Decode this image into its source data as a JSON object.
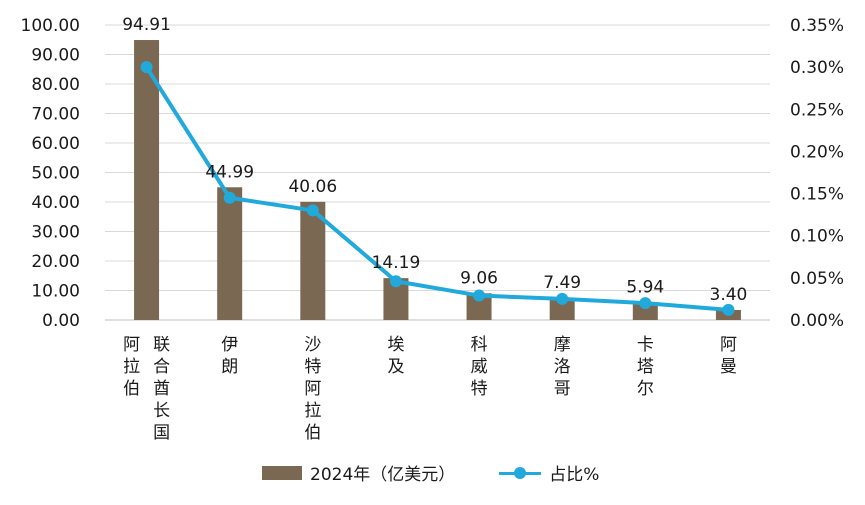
{
  "chart_data": {
    "type": "bar",
    "categories": [
      "阿拉伯联合酋长国",
      "伊朗",
      "沙特阿拉伯",
      "埃及",
      "科威特",
      "摩洛哥",
      "卡塔尔",
      "阿曼"
    ],
    "category_label_lines": [
      [
        "阿拉伯",
        "联合酋长国"
      ],
      [
        "伊朗"
      ],
      [
        "沙特阿拉伯"
      ],
      [
        "埃及"
      ],
      [
        "科威特"
      ],
      [
        "摩洛哥"
      ],
      [
        "卡塔尔"
      ],
      [
        "阿曼"
      ]
    ],
    "series": [
      {
        "name": "2024年（亿美元）",
        "type": "bar",
        "axis": "left",
        "color": "#7b6852",
        "values": [
          94.91,
          44.99,
          40.06,
          14.19,
          9.06,
          7.49,
          5.94,
          3.4
        ],
        "data_labels": [
          "94.91",
          "44.99",
          "40.06",
          "14.19",
          "9.06",
          "7.49",
          "5.94",
          "3.40"
        ]
      },
      {
        "name": "占比%",
        "type": "line",
        "axis": "right",
        "color": "#21a9dc",
        "values": [
          0.3,
          0.145,
          0.13,
          0.046,
          0.029,
          0.025,
          0.02,
          0.012
        ]
      }
    ],
    "y_left": {
      "ylim": [
        0,
        100
      ],
      "ticks": [
        "0.00",
        "10.00",
        "20.00",
        "30.00",
        "40.00",
        "50.00",
        "60.00",
        "70.00",
        "80.00",
        "90.00",
        "100.00"
      ]
    },
    "y_right": {
      "ylim": [
        0,
        0.35
      ],
      "ticks": [
        "0.00%",
        "0.05%",
        "0.10%",
        "0.15%",
        "0.20%",
        "0.25%",
        "0.30%",
        "0.35%"
      ]
    },
    "grid": true,
    "legend_position": "bottom"
  }
}
